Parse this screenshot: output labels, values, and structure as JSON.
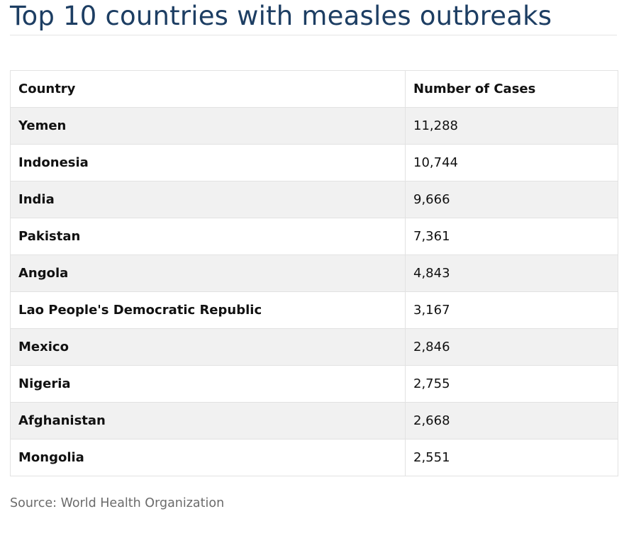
{
  "title": "Top 10 countries with measles outbreaks",
  "table": {
    "headers": [
      "Country",
      "Number of Cases"
    ],
    "rows": [
      {
        "country": "Yemen",
        "cases": "11,288"
      },
      {
        "country": "Indonesia",
        "cases": "10,744"
      },
      {
        "country": "India",
        "cases": "9,666"
      },
      {
        "country": "Pakistan",
        "cases": "7,361"
      },
      {
        "country": "Angola",
        "cases": "4,843"
      },
      {
        "country": "Lao People's Democratic Republic",
        "cases": "3,167"
      },
      {
        "country": "Mexico",
        "cases": "2,846"
      },
      {
        "country": "Nigeria",
        "cases": "2,755"
      },
      {
        "country": "Afghanistan",
        "cases": "2,668"
      },
      {
        "country": "Mongolia",
        "cases": "2,551"
      }
    ]
  },
  "source": "Source: World Health Organization",
  "colors": {
    "title": "#1d3e63",
    "stripe": "#f1f1f1",
    "border": "#e2e2e2",
    "source_text": "#6b6b6b"
  }
}
